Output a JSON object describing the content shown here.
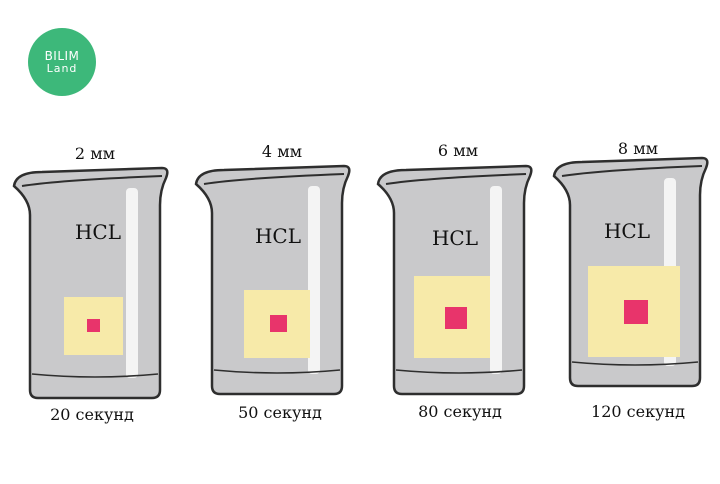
{
  "brand": {
    "line1": "BILIM",
    "line2": "Land"
  },
  "colors": {
    "glass": "#c9c9cb",
    "glass_edge": "#2e2e2e",
    "highlight": "#f4f4f4",
    "sample": "#f7eaa9",
    "core": "#e8346b"
  },
  "beakers": [
    {
      "size": "2 мм",
      "liquid": "HCL",
      "time": "20 секунд"
    },
    {
      "size": "4 мм",
      "liquid": "HCL",
      "time": "50 секунд"
    },
    {
      "size": "6 мм",
      "liquid": "HCL",
      "time": "80 секунд"
    },
    {
      "size": "8 мм",
      "liquid": "HCL",
      "time": "120 секунд"
    }
  ]
}
